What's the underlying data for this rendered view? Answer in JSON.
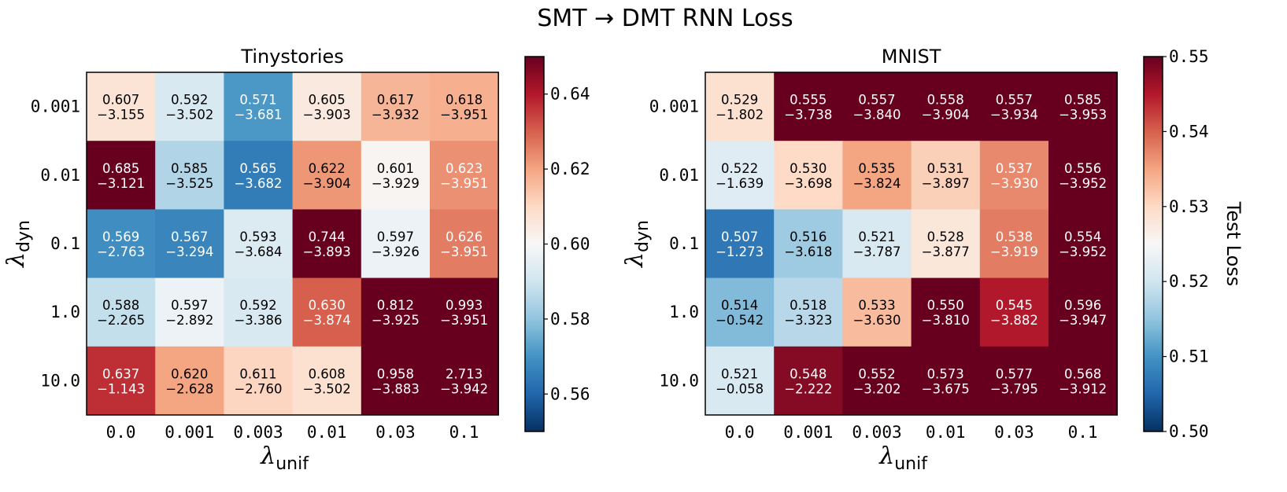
{
  "title": "SMT → DMT RNN Loss",
  "chart_data": [
    {
      "type": "heatmap",
      "title": "Tinystories",
      "x_sym": "λ",
      "x_sub": "unif",
      "y_sym": "λ",
      "y_sub": "dyn",
      "x_ticks": [
        "0.0",
        "0.001",
        "0.003",
        "0.01",
        "0.03",
        "0.1"
      ],
      "y_ticks": [
        "0.001",
        "0.01",
        "0.1",
        "1.0",
        "10.0"
      ],
      "values": [
        [
          0.607,
          0.592,
          0.571,
          0.605,
          0.617,
          0.618
        ],
        [
          0.685,
          0.585,
          0.565,
          0.622,
          0.601,
          0.623
        ],
        [
          0.569,
          0.567,
          0.593,
          0.744,
          0.597,
          0.626
        ],
        [
          0.588,
          0.597,
          0.592,
          0.63,
          0.812,
          0.993
        ],
        [
          0.637,
          0.62,
          0.611,
          0.608,
          0.958,
          2.713
        ]
      ],
      "secondary_values": [
        [
          "−3.155",
          "−3.502",
          "−3.681",
          "−3.903",
          "−3.932",
          "−3.951"
        ],
        [
          "−3.121",
          "−3.525",
          "−3.682",
          "−3.904",
          "−3.929",
          "−3.951"
        ],
        [
          "−2.763",
          "−3.294",
          "−3.684",
          "−3.893",
          "−3.926",
          "−3.951"
        ],
        [
          "−2.265",
          "−2.892",
          "−3.386",
          "−3.874",
          "−3.925",
          "−3.951"
        ],
        [
          "−1.143",
          "−2.628",
          "−2.760",
          "−3.502",
          "−3.883",
          "−3.942"
        ]
      ],
      "colorbar": {
        "vmin": 0.55,
        "vmax": 0.65,
        "ticks": [
          "0.56",
          "0.58",
          "0.60",
          "0.62",
          "0.64"
        ],
        "label": ""
      },
      "colormap": "RdBu_r"
    },
    {
      "type": "heatmap",
      "title": "MNIST",
      "x_sym": "λ",
      "x_sub": "unif",
      "y_sym": "λ",
      "y_sub": "dyn",
      "x_ticks": [
        "0.0",
        "0.001",
        "0.003",
        "0.01",
        "0.03",
        "0.1"
      ],
      "y_ticks": [
        "0.001",
        "0.01",
        "0.1",
        "1.0",
        "10.0"
      ],
      "values": [
        [
          0.529,
          0.555,
          0.557,
          0.558,
          0.557,
          0.585
        ],
        [
          0.522,
          0.53,
          0.535,
          0.531,
          0.537,
          0.556
        ],
        [
          0.507,
          0.516,
          0.521,
          0.528,
          0.538,
          0.554
        ],
        [
          0.514,
          0.518,
          0.533,
          0.55,
          0.545,
          0.596
        ],
        [
          0.521,
          0.548,
          0.552,
          0.573,
          0.577,
          0.568
        ]
      ],
      "secondary_values": [
        [
          "−1.802",
          "−3.738",
          "−3.840",
          "−3.904",
          "−3.934",
          "−3.953"
        ],
        [
          "−1.639",
          "−3.698",
          "−3.824",
          "−3.897",
          "−3.930",
          "−3.952"
        ],
        [
          "−1.273",
          "−3.618",
          "−3.787",
          "−3.877",
          "−3.919",
          "−3.952"
        ],
        [
          "−0.542",
          "−3.323",
          "−3.630",
          "−3.810",
          "−3.882",
          "−3.947"
        ],
        [
          "−0.058",
          "−2.222",
          "−3.202",
          "−3.675",
          "−3.795",
          "−3.912"
        ]
      ],
      "colorbar": {
        "vmin": 0.5,
        "vmax": 0.55,
        "ticks": [
          "0.50",
          "0.51",
          "0.52",
          "0.53",
          "0.54",
          "0.55"
        ],
        "label": "Test Loss"
      },
      "colormap": "RdBu_r"
    }
  ]
}
